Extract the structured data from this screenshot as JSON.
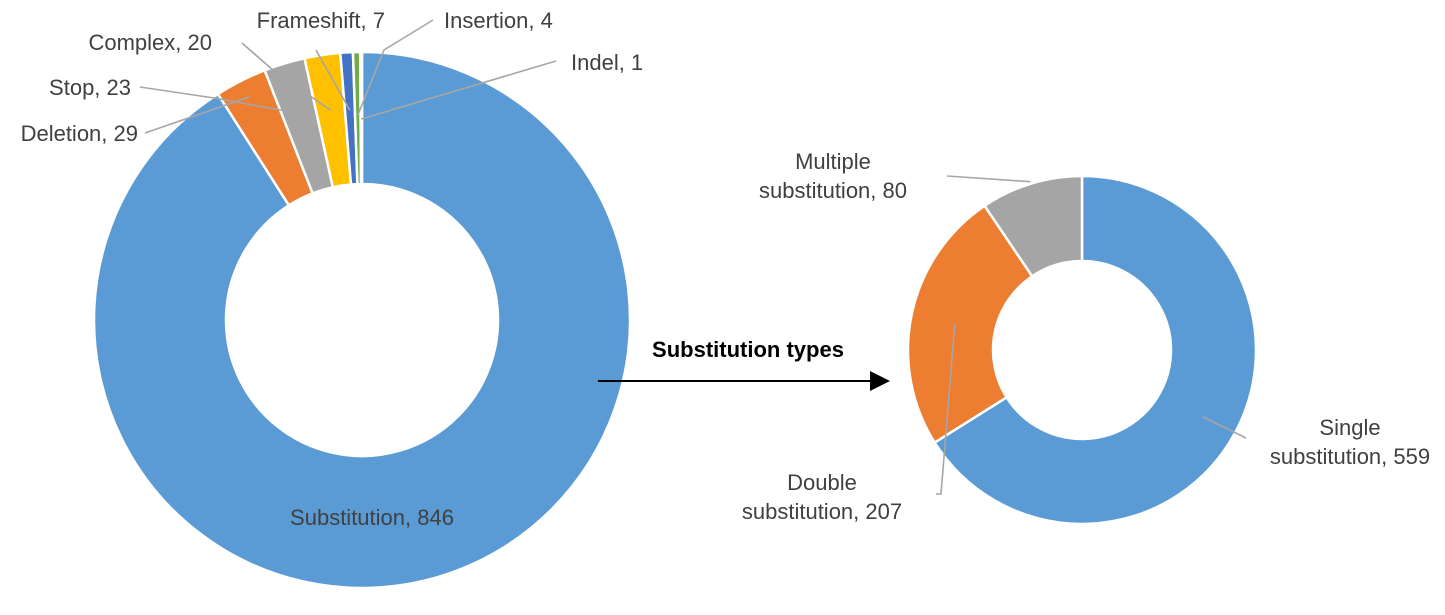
{
  "chart_data": [
    {
      "type": "donut",
      "slices": [
        {
          "label": "Substitution",
          "value": 846,
          "color": "#5b9bd5"
        },
        {
          "label": "Deletion",
          "value": 29,
          "color": "#ed7d31"
        },
        {
          "label": "Stop",
          "value": 23,
          "color": "#a5a5a5"
        },
        {
          "label": "Complex",
          "value": 20,
          "color": "#ffc000"
        },
        {
          "label": "Frameshift",
          "value": 7,
          "color": "#4472c4"
        },
        {
          "label": "Insertion",
          "value": 4,
          "color": "#70ad47"
        },
        {
          "label": "Indel",
          "value": 1,
          "color": "#255e91"
        }
      ],
      "legend": "none"
    },
    {
      "type": "donut",
      "slices": [
        {
          "label": "Single substitution",
          "value": 559,
          "color": "#5b9bd5"
        },
        {
          "label": "Double substitution",
          "value": 207,
          "color": "#ed7d31"
        },
        {
          "label": "Multiple substitution",
          "value": 80,
          "color": "#a5a5a5"
        }
      ],
      "legend": "none"
    }
  ],
  "labels": {
    "left": [
      {
        "line1": "Substitution, 846",
        "line2": ""
      },
      {
        "line1": "Deletion, 29",
        "line2": ""
      },
      {
        "line1": "Stop, 23",
        "line2": ""
      },
      {
        "line1": "Complex, 20",
        "line2": ""
      },
      {
        "line1": "Frameshift, 7",
        "line2": ""
      },
      {
        "line1": "Insertion, 4",
        "line2": ""
      },
      {
        "line1": "Indel, 1",
        "line2": ""
      }
    ],
    "right": [
      {
        "line1": "Single",
        "line2": "substitution, 559"
      },
      {
        "line1": "Double",
        "line2": "substitution, 207"
      },
      {
        "line1": "Multiple",
        "line2": "substitution, 80"
      }
    ]
  },
  "connector": {
    "label": "Substitution types"
  }
}
